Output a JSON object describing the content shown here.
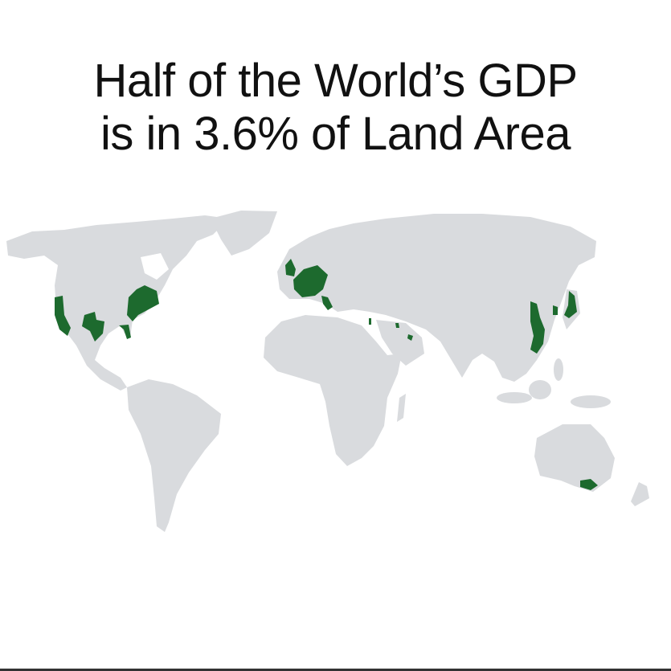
{
  "title": {
    "line1": "Half of the World’s GDP",
    "line2": "is in 3.6% of Land Area"
  },
  "map": {
    "projection": "world",
    "land_color": "#d9dbde",
    "highlight_color": "#1d6a2e",
    "highlighted_regions": [
      "California",
      "Texas",
      "US Northeast / Great Lakes",
      "Florida",
      "Western Europe",
      "United Kingdom",
      "Northern Italy",
      "Israel",
      "Gulf states",
      "Eastern China coast",
      "South Korea",
      "Japan",
      "Southeast Australia"
    ]
  }
}
